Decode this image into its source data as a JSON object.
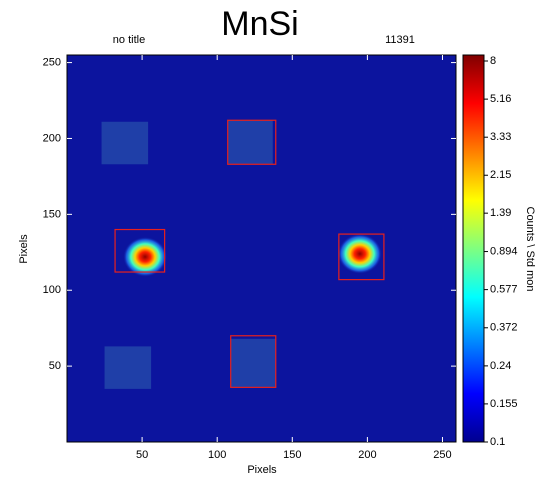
{
  "chart_data": {
    "type": "heatmap",
    "title": "MnSi",
    "annotations": [
      "no title",
      "11391"
    ],
    "xlabel": "Pixels",
    "ylabel": "Pixels",
    "background_color": "#0c149e",
    "xlim": [
      0,
      259
    ],
    "ylim": [
      0,
      255
    ],
    "xticks": [
      50,
      100,
      150,
      200,
      250
    ],
    "yticks": [
      50,
      100,
      150,
      200,
      250
    ],
    "peaks": {
      "x": [
        52,
        195
      ],
      "y": [
        122,
        124
      ],
      "values": [
        8,
        8
      ]
    },
    "masks": {
      "color": "#1f3fa8",
      "rects": [
        {
          "x": [
            23,
            54
          ],
          "y": [
            183,
            211
          ]
        },
        {
          "x": [
            25,
            56
          ],
          "y": [
            35,
            63
          ]
        },
        {
          "x": [
            107,
            137
          ],
          "y": [
            183,
            212
          ]
        },
        {
          "x": [
            109,
            139
          ],
          "y": [
            36,
            68
          ]
        }
      ]
    },
    "boxes": {
      "color": "#e8201c",
      "rects": [
        {
          "x": [
            32,
            65
          ],
          "y": [
            112,
            140
          ]
        },
        {
          "x": [
            181,
            211
          ],
          "y": [
            107,
            137
          ]
        },
        {
          "x": [
            107,
            139
          ],
          "y": [
            183,
            212
          ]
        },
        {
          "x": [
            109,
            139
          ],
          "y": [
            36,
            70
          ]
        }
      ]
    },
    "colorbar": {
      "label": "Counts \\ Std mon",
      "scale": "log",
      "lim": [
        0.1,
        8
      ],
      "ticks": [
        8,
        5.16,
        3.33,
        2.15,
        1.39,
        0.894,
        0.577,
        0.372,
        0.24,
        0.155,
        0.1
      ]
    }
  }
}
